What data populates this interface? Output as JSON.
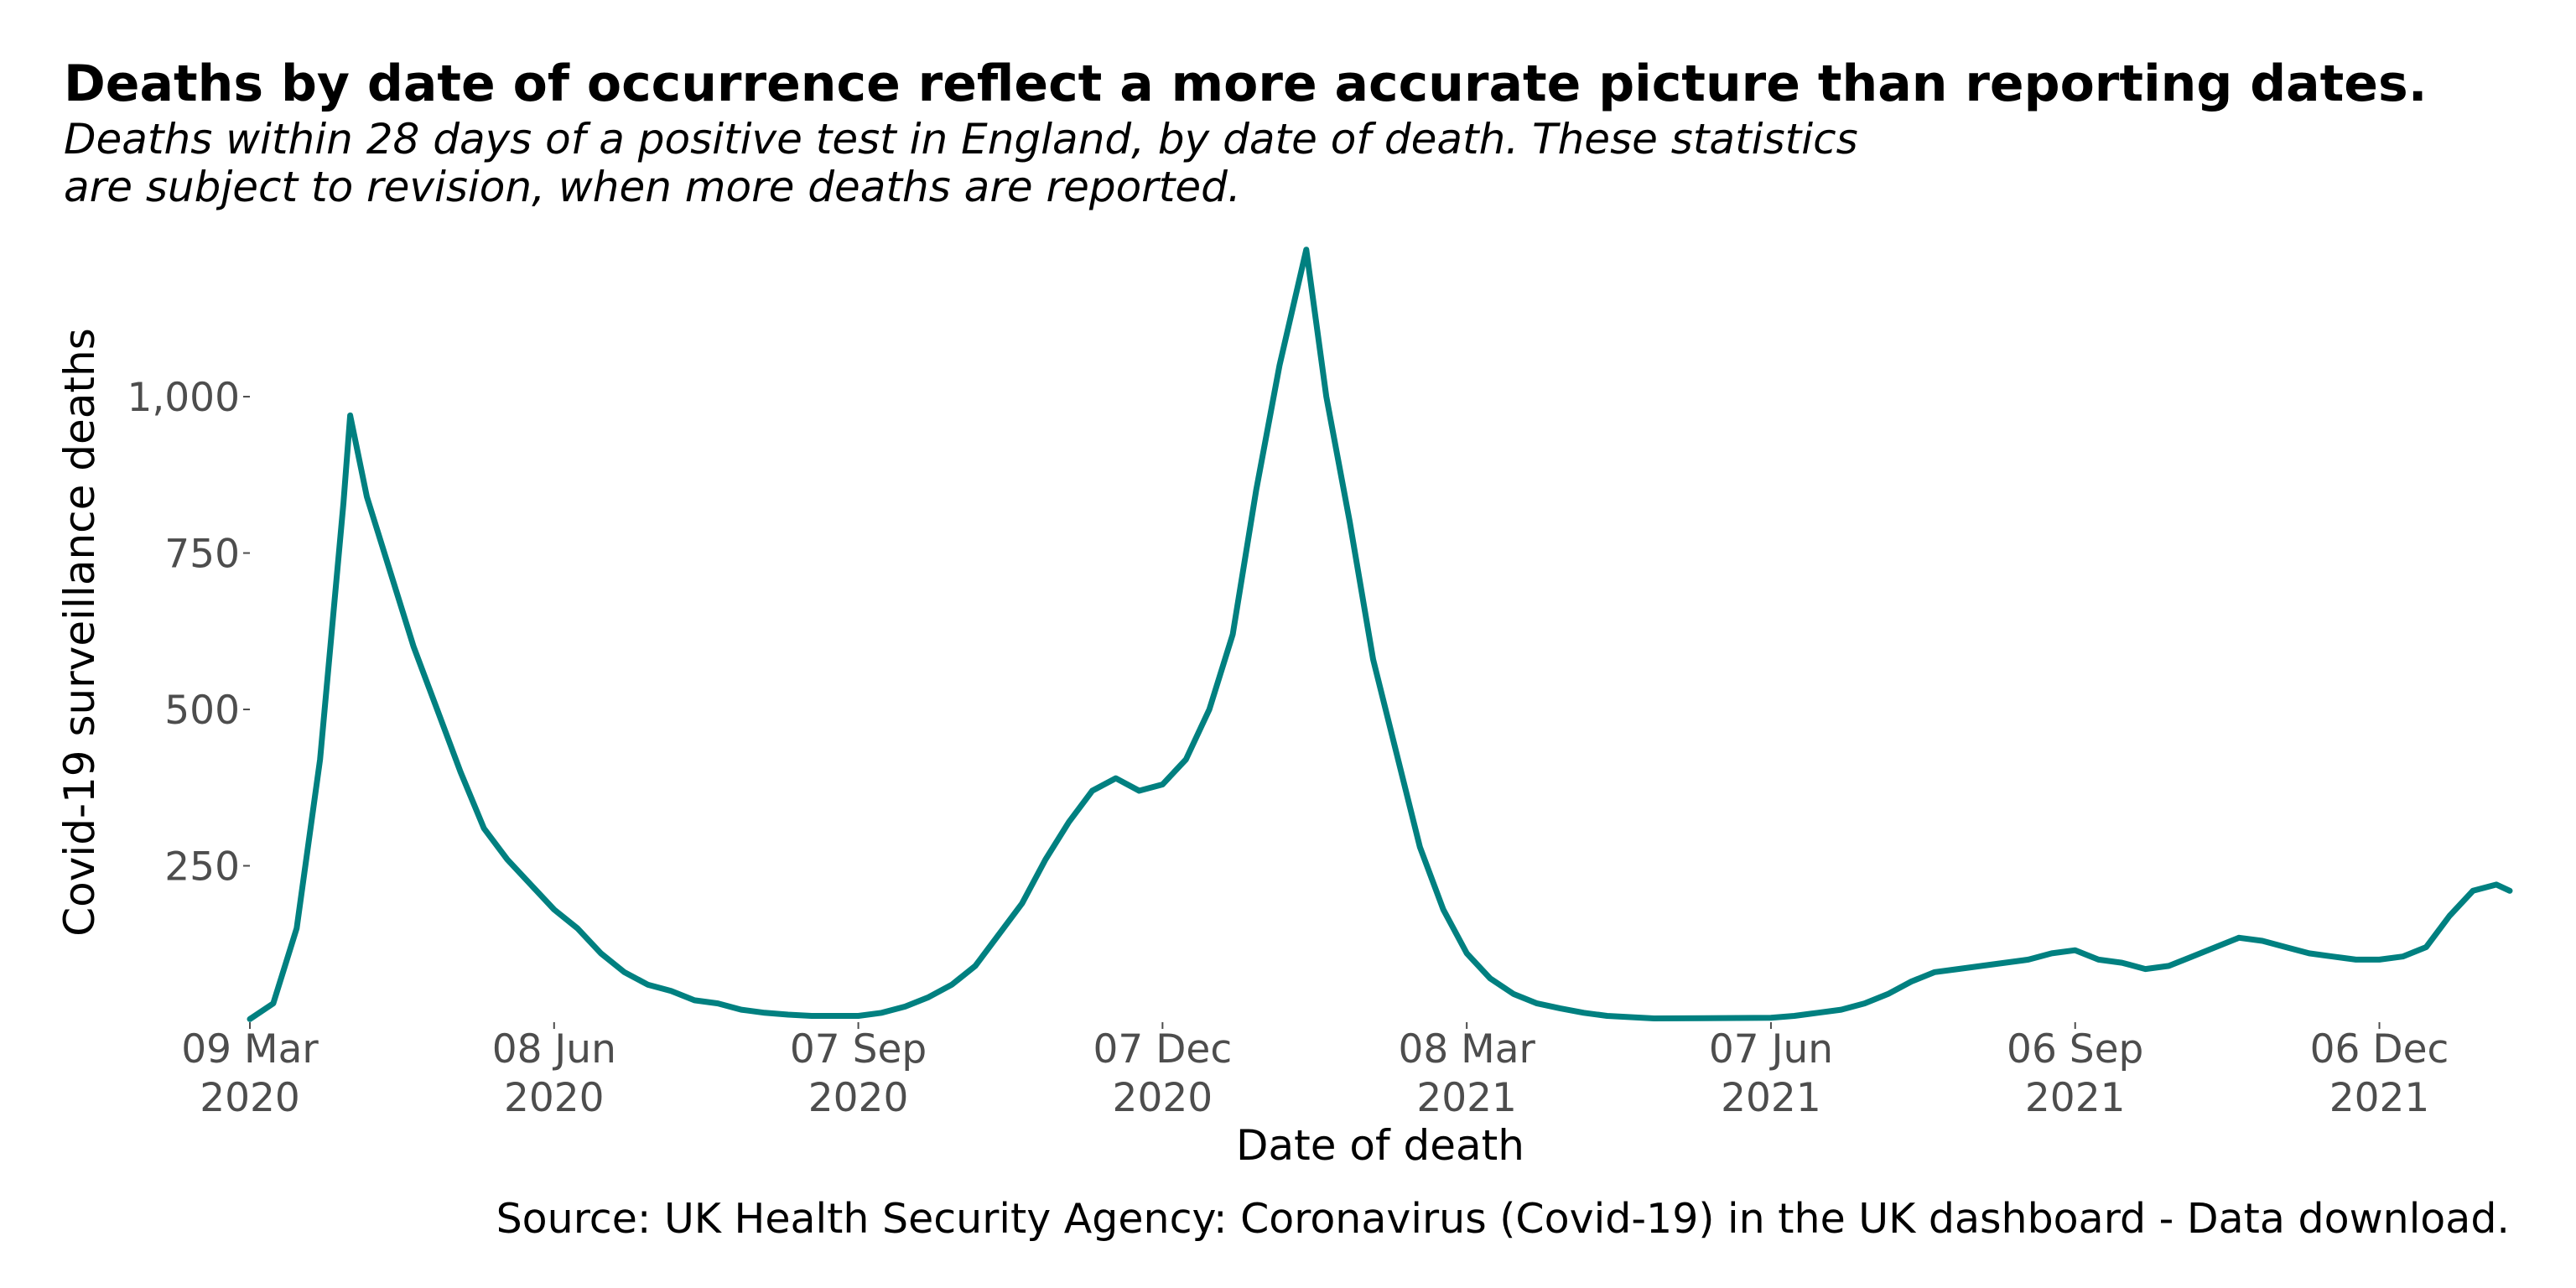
{
  "chart_data": {
    "type": "line",
    "title": "Deaths by date of occurrence reflect a more accurate picture than reporting dates.",
    "subtitle": "Deaths within 28 days of a positive test in England, by date of death. These statistics are subject to revision, when more deaths are reported.",
    "x_label": "Date of death",
    "y_label": "Covid-19 surveillance deaths",
    "source": "Source: UK Health Security Agency: Coronavirus (Covid-19) in the UK dashboard - Data download.",
    "xlim": [
      "2020-03-09",
      "2022-01-14"
    ],
    "ylim": [
      0,
      1240
    ],
    "yticks": [
      250,
      500,
      750,
      {
        "value": 1000,
        "label": "1,000"
      }
    ],
    "xticks": [
      {
        "value": "2020-03-09",
        "label": "09 Mar 2020"
      },
      {
        "value": "2020-06-08",
        "label": "08 Jun 2020"
      },
      {
        "value": "2020-09-07",
        "label": "07 Sep 2020"
      },
      {
        "value": "2020-12-07",
        "label": "07 Dec 2020"
      },
      {
        "value": "2021-03-08",
        "label": "08 Mar 2021"
      },
      {
        "value": "2021-06-07",
        "label": "07 Jun 2021"
      },
      {
        "value": "2021-09-06",
        "label": "06 Sep 2021"
      },
      {
        "value": "2021-12-06",
        "label": "06 Dec 2021"
      }
    ],
    "grid": false,
    "x": [
      "2020-03-09",
      "2020-03-16",
      "2020-03-23",
      "2020-03-30",
      "2020-04-06",
      "2020-04-08",
      "2020-04-13",
      "2020-04-20",
      "2020-04-27",
      "2020-05-04",
      "2020-05-11",
      "2020-05-18",
      "2020-05-25",
      "2020-06-01",
      "2020-06-08",
      "2020-06-15",
      "2020-06-22",
      "2020-06-29",
      "2020-07-06",
      "2020-07-13",
      "2020-07-20",
      "2020-07-27",
      "2020-08-03",
      "2020-08-10",
      "2020-08-17",
      "2020-08-24",
      "2020-08-31",
      "2020-09-07",
      "2020-09-14",
      "2020-09-21",
      "2020-09-28",
      "2020-10-05",
      "2020-10-12",
      "2020-10-19",
      "2020-10-26",
      "2020-11-02",
      "2020-11-09",
      "2020-11-16",
      "2020-11-23",
      "2020-11-30",
      "2020-12-07",
      "2020-12-14",
      "2020-12-21",
      "2020-12-28",
      "2021-01-04",
      "2021-01-11",
      "2021-01-19",
      "2021-01-25",
      "2021-02-01",
      "2021-02-08",
      "2021-02-15",
      "2021-02-22",
      "2021-03-01",
      "2021-03-08",
      "2021-03-15",
      "2021-03-22",
      "2021-03-29",
      "2021-04-05",
      "2021-04-12",
      "2021-04-19",
      "2021-04-26",
      "2021-05-03",
      "2021-06-07",
      "2021-06-14",
      "2021-06-21",
      "2021-06-28",
      "2021-07-05",
      "2021-07-12",
      "2021-07-19",
      "2021-07-26",
      "2021-08-02",
      "2021-08-09",
      "2021-08-16",
      "2021-08-23",
      "2021-08-30",
      "2021-09-06",
      "2021-09-13",
      "2021-09-20",
      "2021-09-27",
      "2021-10-04",
      "2021-10-11",
      "2021-10-18",
      "2021-10-25",
      "2021-11-01",
      "2021-11-08",
      "2021-11-15",
      "2021-11-22",
      "2021-11-29",
      "2021-12-06",
      "2021-12-13",
      "2021-12-20",
      "2021-12-27",
      "2022-01-03",
      "2022-01-10",
      "2022-01-14"
    ],
    "series": [
      {
        "name": "Covid-19 surveillance deaths",
        "color": "#008080",
        "values": [
          5,
          30,
          150,
          420,
          830,
          970,
          840,
          720,
          600,
          500,
          400,
          310,
          260,
          220,
          180,
          150,
          110,
          80,
          60,
          50,
          35,
          30,
          20,
          15,
          12,
          10,
          10,
          10,
          15,
          25,
          40,
          60,
          90,
          140,
          190,
          260,
          320,
          370,
          390,
          370,
          380,
          420,
          500,
          620,
          850,
          1050,
          1235,
          1000,
          800,
          580,
          430,
          280,
          180,
          110,
          70,
          45,
          30,
          22,
          15,
          10,
          8,
          6,
          7,
          10,
          15,
          20,
          30,
          45,
          65,
          80,
          85,
          90,
          95,
          100,
          110,
          115,
          100,
          95,
          85,
          90,
          105,
          120,
          135,
          130,
          120,
          110,
          105,
          100,
          100,
          105,
          120,
          170,
          210,
          220,
          210
        ]
      }
    ]
  }
}
